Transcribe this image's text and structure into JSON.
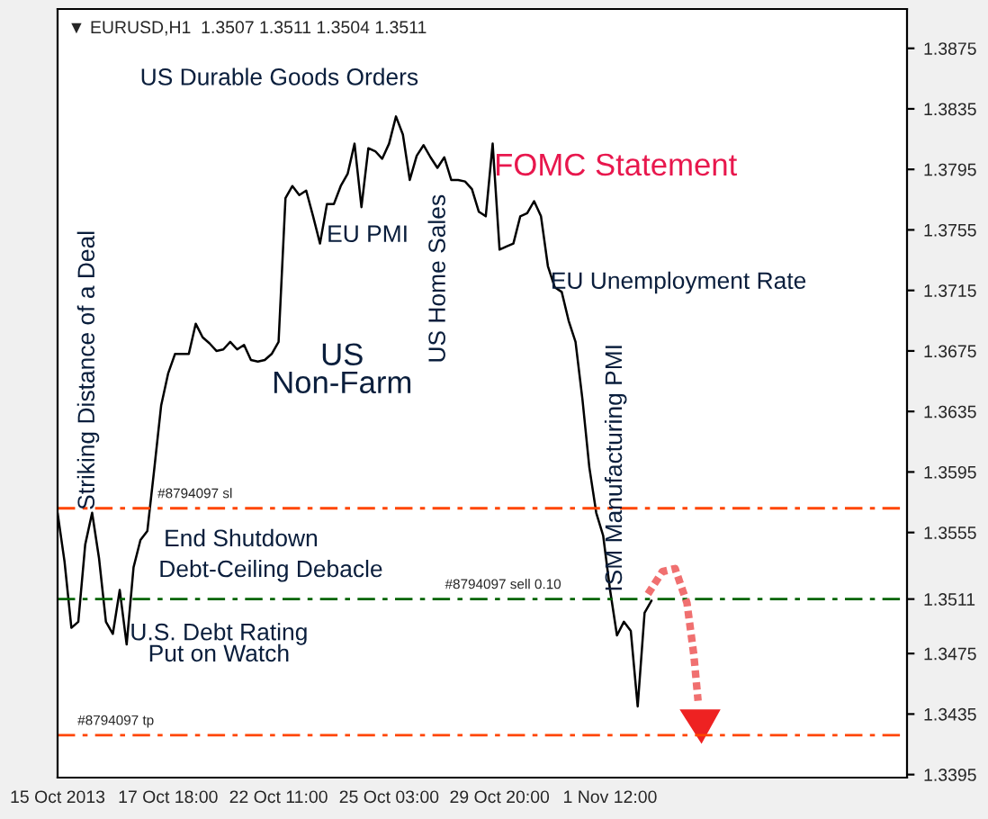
{
  "chart_data": {
    "type": "line",
    "title": "▼ EURUSD,H1  1.3507 1.3511 1.3504 1.3511",
    "categories": [
      "15 Oct 2013",
      null,
      null,
      null,
      null,
      null,
      null,
      null,
      null,
      null,
      null,
      null,
      null,
      null,
      null,
      null,
      "17 Oct 18:00",
      null,
      null,
      null,
      null,
      null,
      null,
      null,
      null,
      null,
      null,
      null,
      null,
      null,
      null,
      null,
      "22 Oct 11:00",
      null,
      null,
      null,
      null,
      null,
      null,
      null,
      null,
      null,
      null,
      null,
      null,
      null,
      null,
      null,
      "25 Oct 03:00",
      null,
      null,
      null,
      null,
      null,
      null,
      null,
      null,
      null,
      null,
      null,
      null,
      null,
      null,
      null,
      "29 Oct 20:00",
      null,
      null,
      null,
      null,
      null,
      null,
      null,
      null,
      null,
      null,
      null,
      null,
      null,
      null,
      null,
      "1 Nov 12:00",
      null,
      null,
      null,
      null,
      null,
      null,
      null,
      null,
      null,
      null,
      null,
      null,
      null,
      null,
      null,
      null,
      null,
      null,
      null,
      null,
      null,
      null,
      null,
      null,
      null,
      null,
      null,
      null,
      null,
      null,
      null,
      null,
      null,
      null,
      null,
      null,
      null,
      null,
      null,
      null,
      null,
      null,
      null
    ],
    "series": [
      {
        "color": "#000000",
        "values": [
          1.3568,
          1.3536,
          1.3492,
          1.3496,
          1.3547,
          1.3568,
          1.3538,
          1.3496,
          1.3488,
          1.3517,
          1.3481,
          1.3532,
          1.355,
          1.3556,
          1.3597,
          1.3639,
          1.366,
          1.3673,
          1.3673,
          1.3673,
          1.3693,
          1.3684,
          1.368,
          1.3675,
          1.3676,
          1.3681,
          1.3676,
          1.3679,
          1.3669,
          1.3668,
          1.3669,
          1.3673,
          1.3681,
          1.3776,
          1.3784,
          1.3778,
          1.3781,
          1.3764,
          1.3746,
          1.3772,
          1.3772,
          1.3784,
          1.3792,
          1.3812,
          1.377,
          1.3809,
          1.3807,
          1.3802,
          1.3812,
          1.383,
          1.3818,
          1.3788,
          1.3804,
          1.3811,
          1.3803,
          1.3796,
          1.3803,
          1.3788,
          1.3788,
          1.3787,
          1.3782,
          1.3767,
          1.3764,
          1.3812,
          1.3742,
          1.3744,
          1.3746,
          1.3764,
          1.3766,
          1.3774,
          1.3764,
          1.3731,
          1.3717,
          1.3714,
          1.3695,
          1.3681,
          1.3643,
          1.3598,
          1.3568,
          1.3553,
          1.3517,
          1.3487,
          1.3496,
          1.349,
          1.344,
          1.3502,
          1.351,
          null,
          null,
          null,
          null,
          null,
          null,
          null,
          null,
          null,
          null,
          null,
          null,
          null,
          null,
          null,
          null,
          null,
          null,
          null,
          null,
          null,
          null,
          null,
          null,
          null,
          null,
          null,
          null,
          null,
          null,
          null,
          null,
          null,
          null,
          null,
          null,
          null
        ]
      }
    ],
    "ylim": [
      1.3393,
      1.3901
    ],
    "yticks": [
      {
        "value": 1.3395,
        "label": "1.3395"
      },
      {
        "value": 1.3435,
        "label": "1.3435"
      },
      {
        "value": 1.3475,
        "label": "1.3475"
      },
      {
        "value": 1.3511,
        "label": "1.3511"
      },
      {
        "value": 1.3555,
        "label": "1.3555"
      },
      {
        "value": 1.3595,
        "label": "1.3595"
      },
      {
        "value": 1.3635,
        "label": "1.3635"
      },
      {
        "value": 1.3675,
        "label": "1.3675"
      },
      {
        "value": 1.3715,
        "label": "1.3715"
      },
      {
        "value": 1.3755,
        "label": "1.3755"
      },
      {
        "value": 1.3795,
        "label": "1.3795"
      },
      {
        "value": 1.3835,
        "label": "1.3835"
      },
      {
        "value": 1.3875,
        "label": "1.3875"
      }
    ],
    "ref_lines": [
      {
        "axis": "y",
        "value": 1.3571,
        "label": "#8794097 sl",
        "color": "#ff4500",
        "line_style": "dashed"
      },
      {
        "axis": "y",
        "value": 1.3511,
        "label": "#8794097 sell 0.10",
        "color": "#006400",
        "line_style": "dashed"
      },
      {
        "axis": "y",
        "value": 1.3421,
        "label": "#8794097 tp",
        "color": "#ff4500",
        "line_style": "dashed"
      }
    ],
    "annotations": [
      "US Durable Goods Orders",
      "FOMC Statement",
      "EU PMI",
      "US Home Sales",
      "EU Unemployment Rate",
      "US\nNon-Farm",
      "Striking Distance of a Deal",
      "ISM Manufacturing PMI",
      "End Shutdown",
      "Debt-Ceiling Debacle",
      "U.S. Debt Rating\nPut on Watch"
    ],
    "grid": false,
    "legend": false,
    "marker": "none",
    "line_style": "solid"
  }
}
